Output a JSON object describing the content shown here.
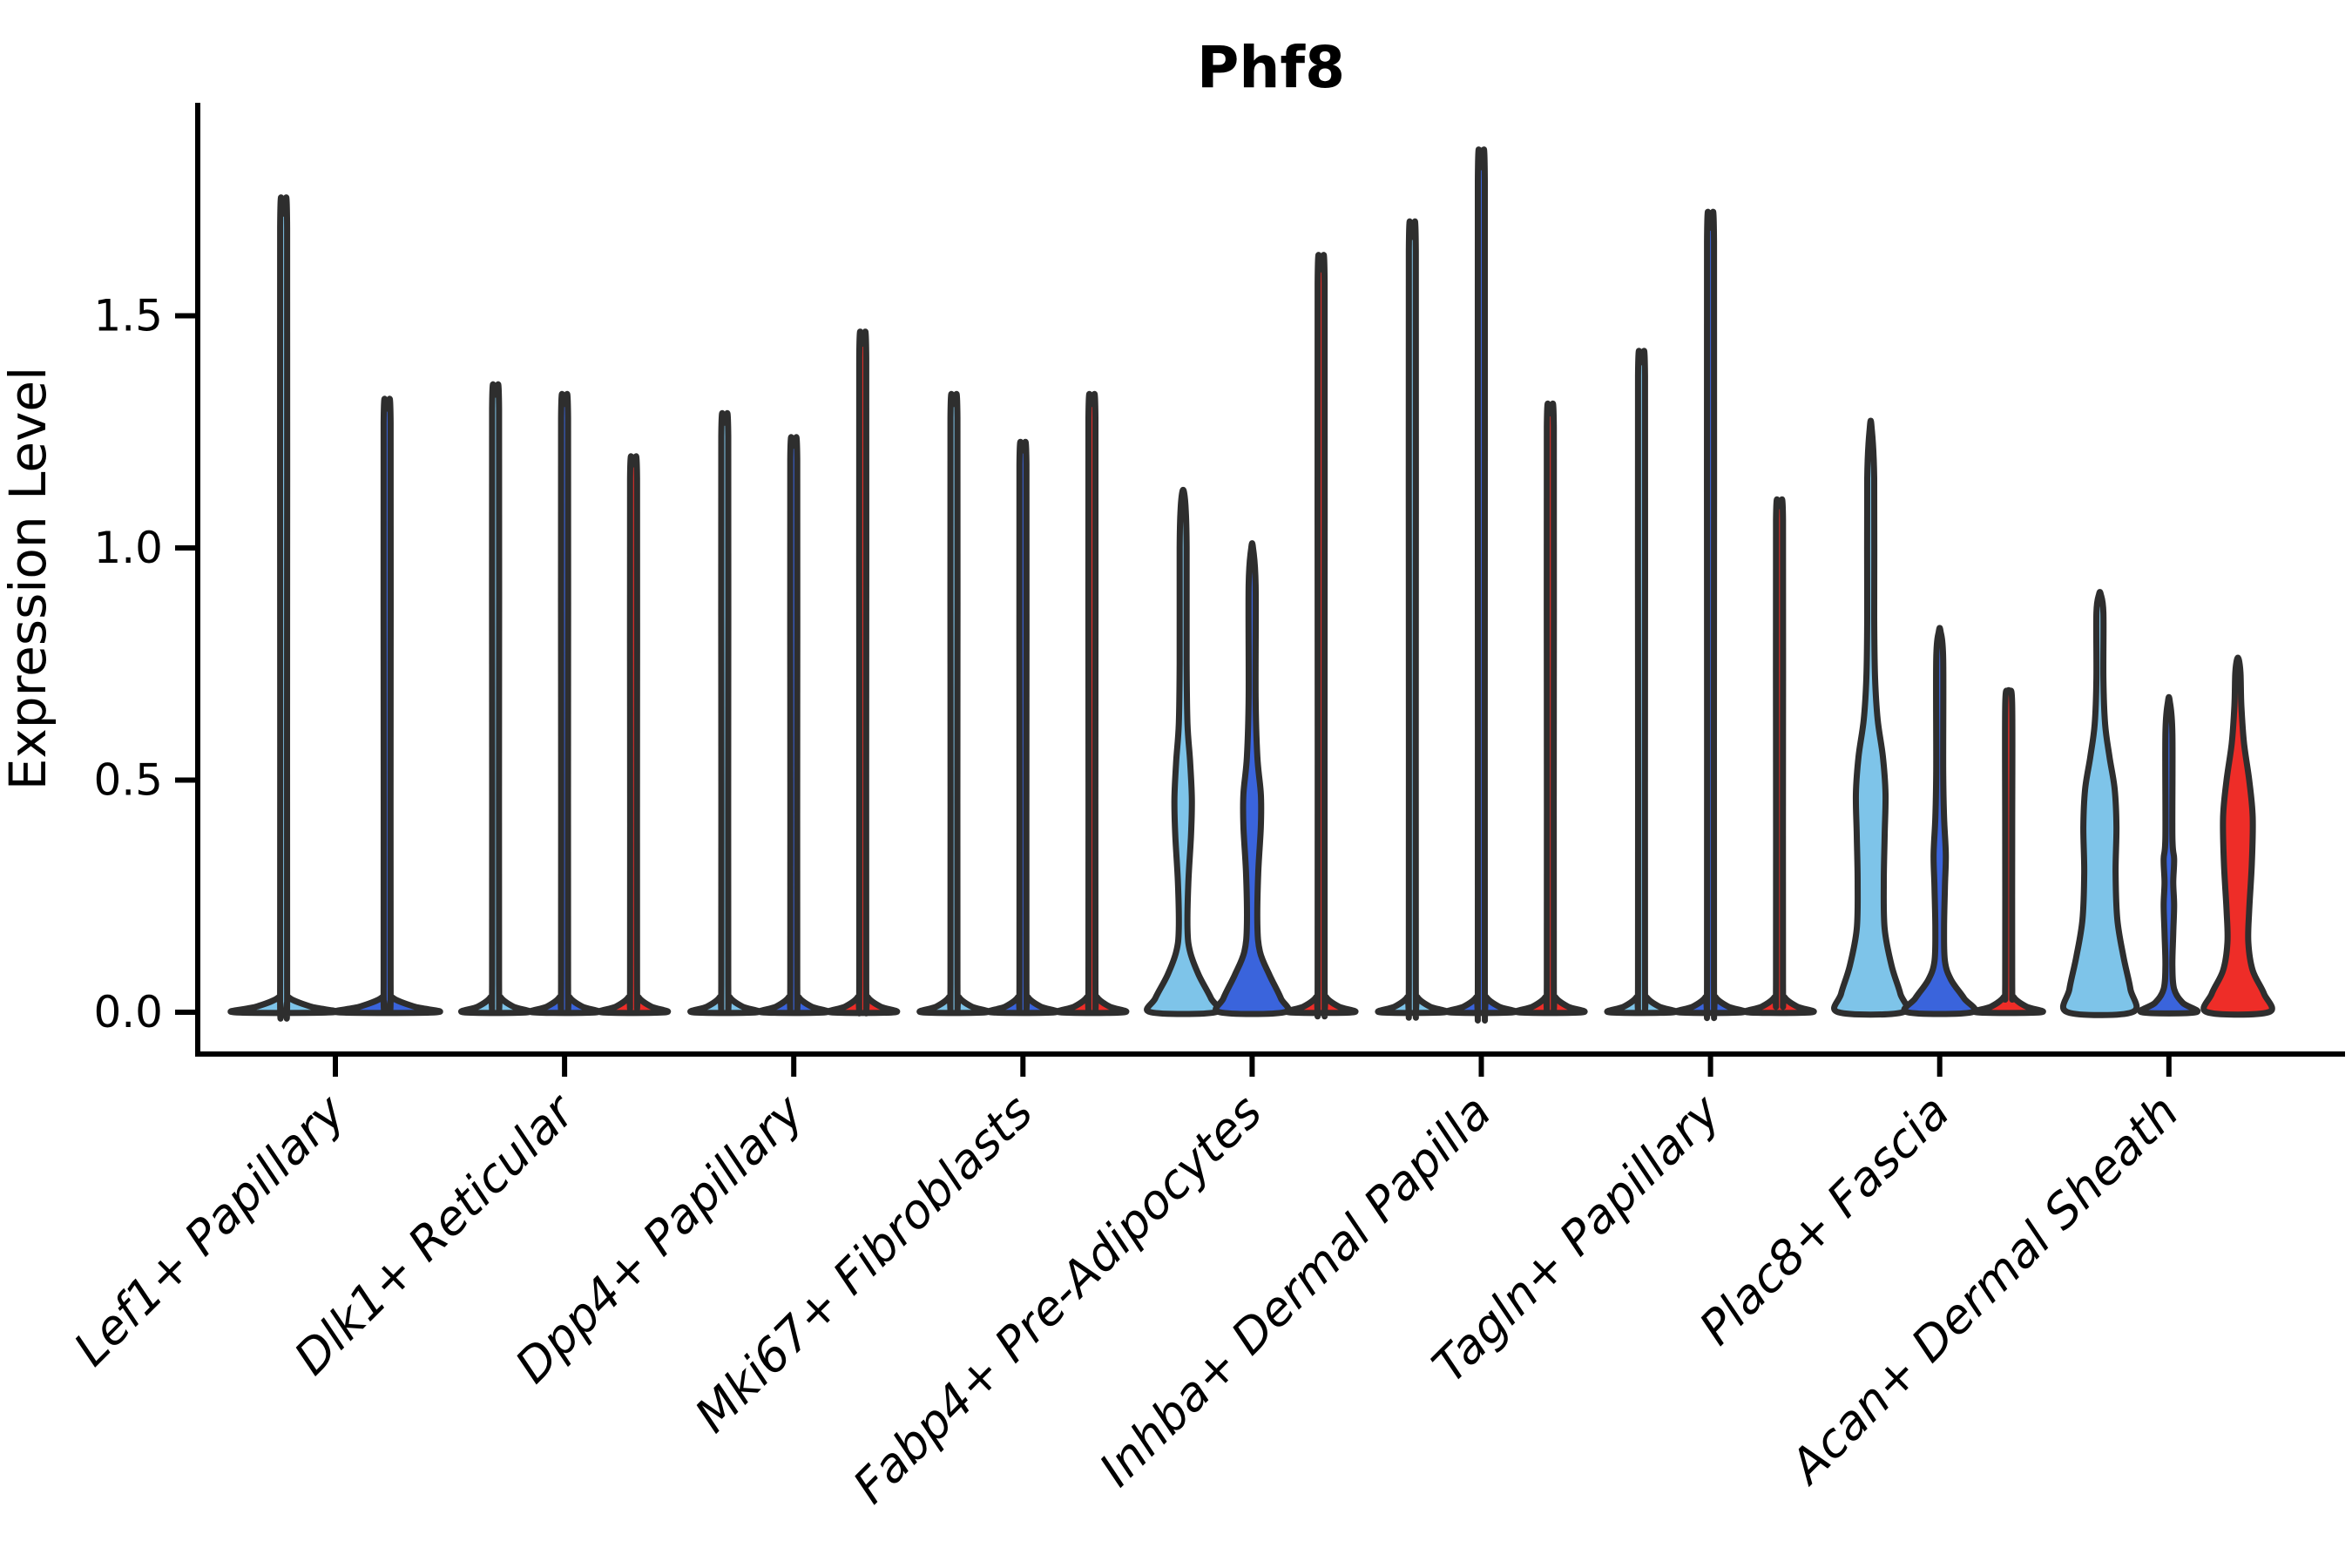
{
  "title": "Phf8",
  "axes": {
    "y_label": "Expression Level",
    "y_tick_labels": [
      "0.0",
      "0.5",
      "1.0",
      "1.5"
    ]
  },
  "chart_data": {
    "type": "violin",
    "title": "Phf8",
    "xlabel": "",
    "ylabel": "Expression Level",
    "ylim": [
      -0.09,
      1.96
    ],
    "ytick_values": [
      0.0,
      0.5,
      1.0,
      1.5
    ],
    "ytick_labels": [
      "0.0",
      "0.5",
      "1.0",
      "1.5"
    ],
    "grid": false,
    "legend_position": "none",
    "x_tick_label_rotation_deg": 45,
    "x_tick_label_style": "italic",
    "colors": {
      "series_light_blue": "#7EC4E9",
      "series_dark_blue": "#3A64DC",
      "series_red": "#EE2D28",
      "violin_outline": "#2E2E2E",
      "axis": "#000000"
    },
    "categories": [
      "Lef1+ Papillary",
      "Dlk1+ Reticular",
      "Dpp4+ Papillary",
      "Mki67+ Fibroblasts",
      "Fabp4+ Pre-Adipocytes",
      "Inhba+ Dermal Papilla",
      "Tagln+ Papillary",
      "Plac8+ Fascia",
      "Acan+ Dermal Sheath"
    ],
    "groups": [
      {
        "category": "Lef1+ Papillary",
        "violins": [
          {
            "color": "#7EC4E9",
            "max": 1.72
          },
          {
            "color": "#3A64DC",
            "max": 1.3
          }
        ]
      },
      {
        "category": "Dlk1+ Reticular",
        "violins": [
          {
            "color": "#7EC4E9",
            "max": 1.33
          },
          {
            "color": "#3A64DC",
            "max": 1.31
          },
          {
            "color": "#EE2D28",
            "max": 1.18
          }
        ]
      },
      {
        "category": "Dpp4+ Papillary",
        "violins": [
          {
            "color": "#7EC4E9",
            "max": 1.27
          },
          {
            "color": "#3A64DC",
            "max": 1.22
          },
          {
            "color": "#EE2D28",
            "max": 1.44
          }
        ]
      },
      {
        "category": "Mki67+ Fibroblasts",
        "violins": [
          {
            "color": "#7EC4E9",
            "max": 1.31
          },
          {
            "color": "#3A64DC",
            "max": 1.21
          },
          {
            "color": "#EE2D28",
            "max": 1.31
          }
        ]
      },
      {
        "category": "Fabp4+ Pre-Adipocytes",
        "violins": [
          {
            "color": "#7EC4E9",
            "max": 1.12,
            "profile": [
              [
                0,
                37
              ],
              [
                0.03,
                32
              ],
              [
                0.08,
                18
              ],
              [
                0.13,
                8
              ],
              [
                0.18,
                5
              ],
              [
                0.28,
                6
              ],
              [
                0.38,
                9
              ],
              [
                0.46,
                10
              ],
              [
                0.54,
                8
              ],
              [
                0.62,
                5
              ],
              [
                0.75,
                4
              ],
              [
                1.0,
                4
              ],
              [
                1.08,
                3
              ],
              [
                1.12,
                1
              ]
            ]
          },
          {
            "color": "#3A64DC",
            "max": 1.0,
            "profile": [
              [
                0,
                37
              ],
              [
                0.03,
                33
              ],
              [
                0.08,
                20
              ],
              [
                0.13,
                9
              ],
              [
                0.19,
                6
              ],
              [
                0.3,
                7
              ],
              [
                0.4,
                10
              ],
              [
                0.47,
                10
              ],
              [
                0.55,
                6
              ],
              [
                0.68,
                4
              ],
              [
                0.92,
                4
              ],
              [
                1.0,
                1
              ]
            ]
          },
          {
            "color": "#EE2D28",
            "max": 1.6
          }
        ]
      },
      {
        "category": "Inhba+ Dermal Papilla",
        "violins": [
          {
            "color": "#7EC4E9",
            "max": 1.67
          },
          {
            "color": "#3A64DC",
            "max": 1.82
          },
          {
            "color": "#EE2D28",
            "max": 1.29
          }
        ]
      },
      {
        "category": "Tagln+ Papillary",
        "violins": [
          {
            "color": "#7EC4E9",
            "max": 1.4
          },
          {
            "color": "#3A64DC",
            "max": 1.69
          },
          {
            "color": "#EE2D28",
            "max": 1.09
          }
        ]
      },
      {
        "category": "Plac8+ Fascia",
        "violins": [
          {
            "color": "#7EC4E9",
            "max": 1.26,
            "profile": [
              [
                0,
                37
              ],
              [
                0.04,
                34
              ],
              [
                0.1,
                24
              ],
              [
                0.18,
                16
              ],
              [
                0.28,
                15
              ],
              [
                0.38,
                16
              ],
              [
                0.47,
                17
              ],
              [
                0.55,
                14
              ],
              [
                0.63,
                8
              ],
              [
                0.72,
                5
              ],
              [
                0.85,
                4
              ],
              [
                1.15,
                4
              ],
              [
                1.26,
                1
              ]
            ]
          },
          {
            "color": "#3A64DC",
            "max": 0.82,
            "profile": [
              [
                0,
                37
              ],
              [
                0.03,
                28
              ],
              [
                0.07,
                13
              ],
              [
                0.11,
                6
              ],
              [
                0.18,
                5
              ],
              [
                0.27,
                6
              ],
              [
                0.34,
                7
              ],
              [
                0.42,
                5
              ],
              [
                0.52,
                4
              ],
              [
                0.76,
                4
              ],
              [
                0.82,
                1
              ]
            ]
          },
          {
            "color": "#EE2D28",
            "max": 0.69
          }
        ]
      },
      {
        "category": "Acan+ Dermal Sheath",
        "violins": [
          {
            "color": "#7EC4E9",
            "max": 0.9,
            "profile": [
              [
                0,
                37
              ],
              [
                0.05,
                35
              ],
              [
                0.12,
                27
              ],
              [
                0.2,
                20
              ],
              [
                0.3,
                18
              ],
              [
                0.4,
                19
              ],
              [
                0.48,
                17
              ],
              [
                0.55,
                11
              ],
              [
                0.62,
                6
              ],
              [
                0.72,
                4
              ],
              [
                0.86,
                4
              ],
              [
                0.9,
                1
              ]
            ]
          },
          {
            "color": "#3A64DC",
            "max": 0.67,
            "profile": [
              [
                0,
                31
              ],
              [
                0.02,
                16
              ],
              [
                0.05,
                6
              ],
              [
                0.1,
                4
              ],
              [
                0.17,
                5
              ],
              [
                0.23,
                6
              ],
              [
                0.28,
                5
              ],
              [
                0.33,
                6
              ],
              [
                0.38,
                4
              ],
              [
                0.6,
                4
              ],
              [
                0.67,
                1
              ]
            ]
          },
          {
            "color": "#EE2D28",
            "max": 0.76,
            "profile": [
              [
                0,
                35
              ],
              [
                0.04,
                30
              ],
              [
                0.09,
                17
              ],
              [
                0.15,
                12
              ],
              [
                0.22,
                13
              ],
              [
                0.32,
                16
              ],
              [
                0.42,
                17
              ],
              [
                0.5,
                13
              ],
              [
                0.58,
                7
              ],
              [
                0.66,
                4
              ],
              [
                0.73,
                3
              ],
              [
                0.76,
                1
              ]
            ]
          }
        ]
      }
    ]
  }
}
